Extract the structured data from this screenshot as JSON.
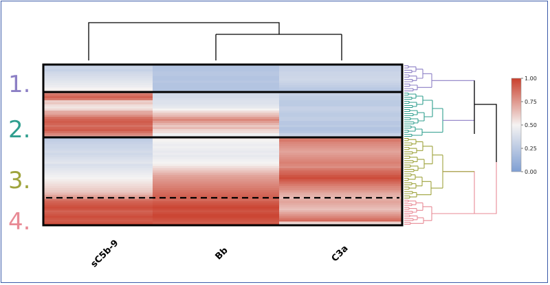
{
  "chart_data": {
    "type": "heatmap",
    "columns": [
      "sC5b-9",
      "Bb",
      "C3a"
    ],
    "colorbar": {
      "min": 0.0,
      "max": 1.0,
      "ticks": [
        "0.00",
        "0.25",
        "0.50",
        "0.75",
        "1.00"
      ],
      "low_color": "#7f9fd3",
      "mid_color": "#f5f3f2",
      "high_color": "#c93f2c"
    },
    "clusters": [
      {
        "label": "1.",
        "color": "#8c7fc5",
        "rows": 12,
        "values": [
          [
            0.3,
            0.22,
            0.28
          ],
          [
            0.32,
            0.22,
            0.3
          ],
          [
            0.3,
            0.22,
            0.3
          ],
          [
            0.34,
            0.24,
            0.32
          ],
          [
            0.36,
            0.24,
            0.32
          ],
          [
            0.38,
            0.22,
            0.33
          ],
          [
            0.4,
            0.22,
            0.34
          ],
          [
            0.42,
            0.24,
            0.32
          ],
          [
            0.44,
            0.22,
            0.3
          ],
          [
            0.46,
            0.22,
            0.28
          ],
          [
            0.5,
            0.22,
            0.25
          ],
          [
            0.52,
            0.22,
            0.22
          ]
        ]
      },
      {
        "label": "2.",
        "color": "#2f9e8e",
        "rows": 22,
        "values": [
          [
            0.8,
            0.34,
            0.32
          ],
          [
            0.86,
            0.36,
            0.3
          ],
          [
            0.9,
            0.36,
            0.28
          ],
          [
            0.84,
            0.38,
            0.28
          ],
          [
            0.6,
            0.4,
            0.26
          ],
          [
            0.62,
            0.4,
            0.26
          ],
          [
            0.56,
            0.42,
            0.26
          ],
          [
            0.54,
            0.44,
            0.3
          ],
          [
            0.58,
            0.5,
            0.3
          ],
          [
            0.7,
            0.56,
            0.28
          ],
          [
            0.72,
            0.62,
            0.26
          ],
          [
            0.78,
            0.66,
            0.26
          ],
          [
            0.86,
            0.74,
            0.28
          ],
          [
            0.9,
            0.8,
            0.28
          ],
          [
            0.92,
            0.74,
            0.24
          ],
          [
            0.9,
            0.68,
            0.24
          ],
          [
            0.86,
            0.62,
            0.26
          ],
          [
            0.9,
            0.66,
            0.22
          ],
          [
            0.92,
            0.58,
            0.22
          ],
          [
            0.86,
            0.56,
            0.24
          ],
          [
            0.8,
            0.48,
            0.3
          ],
          [
            0.74,
            0.46,
            0.32
          ]
        ]
      },
      {
        "label": "3.",
        "color": "#9ea33c",
        "rows": 28,
        "values": [
          [
            0.26,
            0.52,
            0.82
          ],
          [
            0.28,
            0.5,
            0.84
          ],
          [
            0.3,
            0.48,
            0.8
          ],
          [
            0.32,
            0.46,
            0.78
          ],
          [
            0.32,
            0.48,
            0.76
          ],
          [
            0.34,
            0.46,
            0.74
          ],
          [
            0.36,
            0.44,
            0.72
          ],
          [
            0.34,
            0.46,
            0.74
          ],
          [
            0.36,
            0.44,
            0.76
          ],
          [
            0.38,
            0.46,
            0.78
          ],
          [
            0.4,
            0.48,
            0.8
          ],
          [
            0.42,
            0.5,
            0.82
          ],
          [
            0.38,
            0.52,
            0.8
          ],
          [
            0.4,
            0.56,
            0.78
          ],
          [
            0.42,
            0.6,
            0.84
          ],
          [
            0.44,
            0.64,
            0.88
          ],
          [
            0.46,
            0.68,
            0.9
          ],
          [
            0.48,
            0.72,
            0.94
          ],
          [
            0.5,
            0.74,
            0.96
          ],
          [
            0.52,
            0.76,
            0.92
          ],
          [
            0.54,
            0.78,
            0.88
          ],
          [
            0.56,
            0.8,
            0.84
          ],
          [
            0.58,
            0.82,
            0.8
          ],
          [
            0.6,
            0.84,
            0.78
          ],
          [
            0.62,
            0.86,
            0.74
          ],
          [
            0.66,
            0.88,
            0.7
          ],
          [
            0.72,
            0.9,
            0.68
          ],
          [
            0.76,
            0.9,
            0.66
          ]
        ]
      },
      {
        "label": "4.",
        "color": "#e88a95",
        "rows": 14,
        "values": [
          [
            0.86,
            0.88,
            0.7
          ],
          [
            0.9,
            0.92,
            0.72
          ],
          [
            0.92,
            0.94,
            0.7
          ],
          [
            0.94,
            0.96,
            0.68
          ],
          [
            0.96,
            0.98,
            0.66
          ],
          [
            0.94,
            0.96,
            0.64
          ],
          [
            0.9,
            0.94,
            0.68
          ],
          [
            0.92,
            0.96,
            0.72
          ],
          [
            0.94,
            0.98,
            0.76
          ],
          [
            0.96,
            0.98,
            0.8
          ],
          [
            0.94,
            0.96,
            0.84
          ],
          [
            0.92,
            0.94,
            0.88
          ],
          [
            0.94,
            0.92,
            0.6
          ],
          [
            0.96,
            0.94,
            0.54
          ]
        ]
      }
    ]
  }
}
